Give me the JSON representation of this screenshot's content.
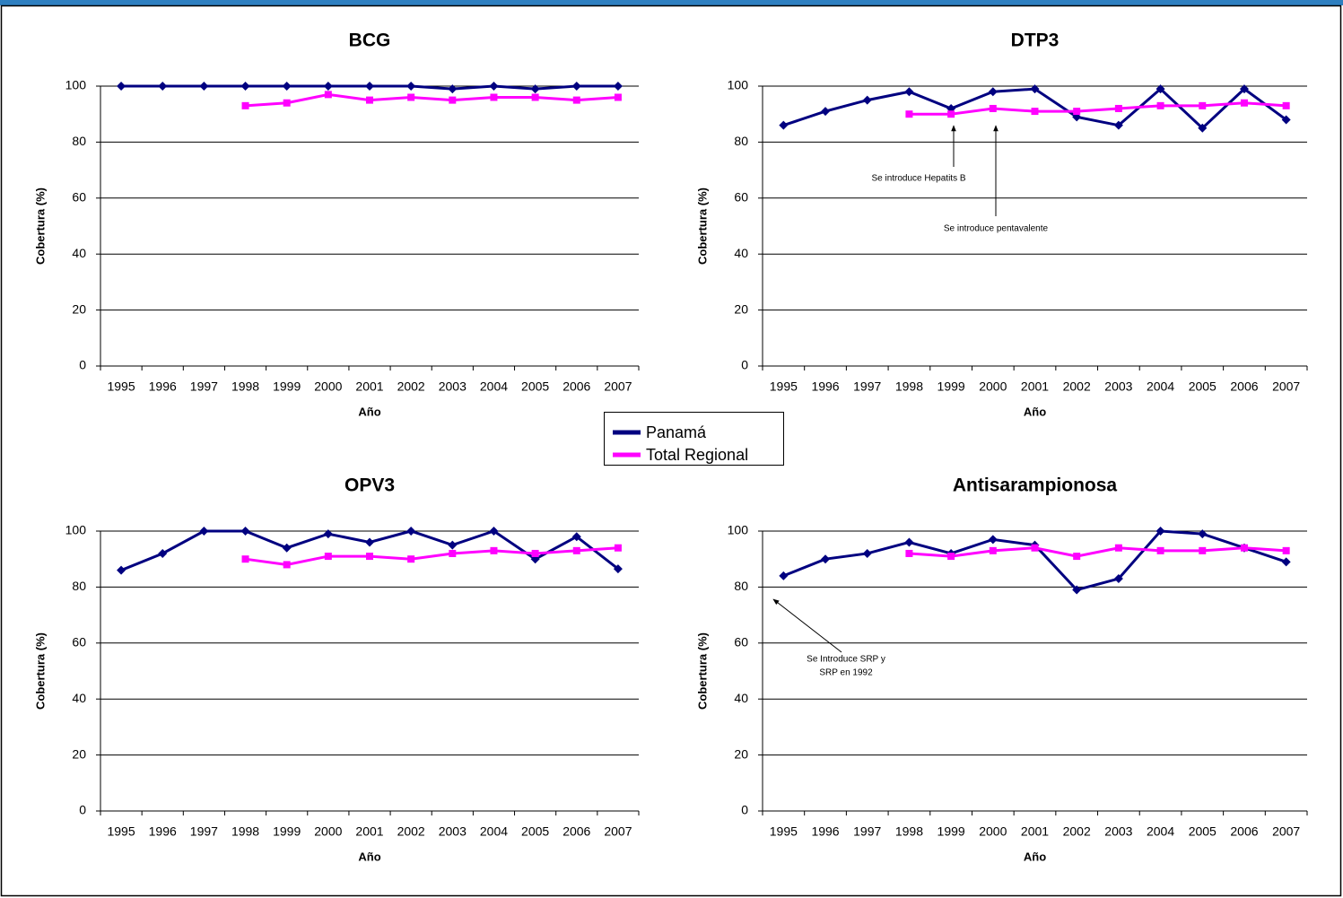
{
  "chart_data": [
    {
      "type": "line",
      "title": "BCG",
      "x_label": "Año",
      "y_label": "Cobertura (%)",
      "categories": [
        "1995",
        "1996",
        "1997",
        "1998",
        "1999",
        "2000",
        "2001",
        "2002",
        "2003",
        "2004",
        "2005",
        "2006",
        "2007"
      ],
      "ylim": [
        0,
        100
      ],
      "yticks": [
        0,
        20,
        40,
        60,
        80,
        100
      ],
      "grid": true,
      "series": [
        {
          "name": "Panamá",
          "color": "#000080",
          "marker": "diamond",
          "values": [
            100,
            100,
            100,
            100,
            100,
            100,
            100,
            100,
            99,
            100,
            99,
            100,
            100
          ]
        },
        {
          "name": "Total Regional",
          "color": "#ff00ff",
          "marker": "square",
          "values": [
            null,
            null,
            null,
            93,
            94,
            97,
            95,
            96,
            95,
            96,
            96,
            95,
            96
          ]
        }
      ]
    },
    {
      "type": "line",
      "title": "DTP3",
      "x_label": "Año",
      "y_label": "Cobertura (%)",
      "categories": [
        "1995",
        "1996",
        "1997",
        "1998",
        "1999",
        "2000",
        "2001",
        "2002",
        "2003",
        "2004",
        "2005",
        "2006",
        "2007"
      ],
      "ylim": [
        0,
        100
      ],
      "yticks": [
        0,
        20,
        40,
        60,
        80,
        100
      ],
      "grid": true,
      "series": [
        {
          "name": "Panamá",
          "color": "#000080",
          "marker": "diamond",
          "values": [
            86,
            91,
            95,
            98,
            92,
            98,
            99,
            89,
            86,
            99,
            85,
            99,
            88
          ]
        },
        {
          "name": "Total Regional",
          "color": "#ff00ff",
          "marker": "square",
          "values": [
            null,
            null,
            null,
            90,
            90,
            92,
            91,
            91,
            92,
            93,
            93,
            94,
            93
          ]
        }
      ],
      "annotations": [
        {
          "lines": [
            "Se introduce Hepatits B"
          ]
        },
        {
          "lines": [
            "Se introduce pentavalente"
          ]
        }
      ]
    },
    {
      "type": "line",
      "title": "OPV3",
      "x_label": "Año",
      "y_label": "Cobertura (%)",
      "categories": [
        "1995",
        "1996",
        "1997",
        "1998",
        "1999",
        "2000",
        "2001",
        "2002",
        "2003",
        "2004",
        "2005",
        "2006",
        "2007"
      ],
      "ylim": [
        0,
        100
      ],
      "yticks": [
        0,
        20,
        40,
        60,
        80,
        100
      ],
      "grid": true,
      "series": [
        {
          "name": "Panamá",
          "color": "#000080",
          "marker": "diamond",
          "values": [
            86,
            92,
            100,
            100,
            94,
            99,
            96,
            100,
            95,
            100,
            90,
            98,
            86.5
          ]
        },
        {
          "name": "Total Regional",
          "color": "#ff00ff",
          "marker": "square",
          "values": [
            null,
            null,
            null,
            90,
            88,
            91,
            91,
            90,
            92,
            93,
            92,
            93,
            94
          ]
        }
      ]
    },
    {
      "type": "line",
      "title": "Antisarampionosa",
      "x_label": "Año",
      "y_label": "Cobertura (%)",
      "categories": [
        "1995",
        "1996",
        "1997",
        "1998",
        "1999",
        "2000",
        "2001",
        "2002",
        "2003",
        "2004",
        "2005",
        "2006",
        "2007"
      ],
      "ylim": [
        0,
        100
      ],
      "yticks": [
        0,
        20,
        40,
        60,
        80,
        100
      ],
      "grid": true,
      "series": [
        {
          "name": "Panamá",
          "color": "#000080",
          "marker": "diamond",
          "values": [
            84,
            90,
            92,
            96,
            92,
            97,
            95,
            79,
            83,
            100,
            99,
            94,
            89
          ]
        },
        {
          "name": "Total Regional",
          "color": "#ff00ff",
          "marker": "square",
          "values": [
            null,
            null,
            null,
            92,
            91,
            93,
            94,
            91,
            94,
            93,
            93,
            94,
            93
          ]
        }
      ],
      "annotations": [
        {
          "lines": [
            "Se Introduce SRP y",
            "SRP en 1992"
          ]
        }
      ]
    }
  ]
}
